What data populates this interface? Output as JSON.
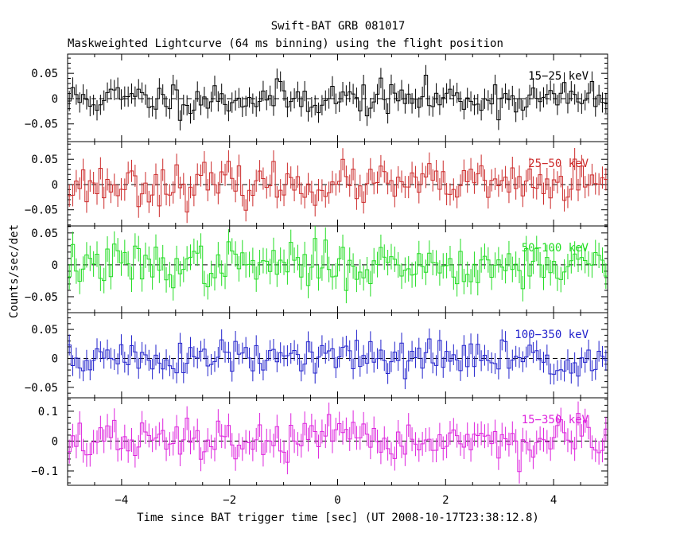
{
  "chart_data": {
    "type": "line",
    "style": "step-with-error-bars",
    "title": "Swift-BAT GRB 081017",
    "subtitle": "Maskweighted Lightcurve (64 ms binning) using the flight position",
    "xlabel": "Time since BAT trigger time [sec] (UT 2008-10-17T23:38:12.8)",
    "ylabel": "Counts/sec/det",
    "xlim": [
      -5,
      5
    ],
    "bin_width_sec": 0.064,
    "x_ticks": [
      -4,
      -2,
      0,
      2,
      4
    ],
    "x_tick_labels": [
      "−4",
      "−2",
      "0",
      "2",
      "4"
    ],
    "panels": [
      {
        "name": "15−25 keV",
        "color": "#000000",
        "ylim": [
          -0.085,
          0.088
        ],
        "y_ticks": [
          -0.05,
          0,
          0.05
        ],
        "y_tick_labels": [
          "−0.05",
          "0",
          "0.05"
        ],
        "noise_amplitude": 0.017,
        "error_bar": 0.02,
        "seed": 11
      },
      {
        "name": "25−50 keV",
        "color": "#cc2a2a",
        "ylim": [
          -0.082,
          0.085
        ],
        "y_ticks": [
          -0.05,
          0,
          0.05
        ],
        "y_tick_labels": [
          "−0.05",
          "0",
          "0.05"
        ],
        "noise_amplitude": 0.02,
        "error_bar": 0.022,
        "seed": 23
      },
      {
        "name": "50−100 keV",
        "color": "#22dd22",
        "ylim": [
          -0.075,
          0.061
        ],
        "y_ticks": [
          -0.05,
          0,
          0.05
        ],
        "y_tick_labels": [
          "−0.05",
          "0",
          "0.05"
        ],
        "noise_amplitude": 0.017,
        "error_bar": 0.02,
        "seed": 37
      },
      {
        "name": "100−350 keV",
        "color": "#2222cc",
        "ylim": [
          -0.068,
          0.079
        ],
        "y_ticks": [
          -0.05,
          0,
          0.05
        ],
        "y_tick_labels": [
          "−0.05",
          "0",
          "0.05"
        ],
        "noise_amplitude": 0.017,
        "error_bar": 0.018,
        "seed": 51
      },
      {
        "name": "15−350 keV",
        "color": "#dd22dd",
        "ylim": [
          -0.148,
          0.145
        ],
        "y_ticks": [
          -0.1,
          0,
          0.1
        ],
        "y_tick_labels": [
          "−0.1",
          "0",
          "0.1"
        ],
        "noise_amplitude": 0.035,
        "error_bar": 0.04,
        "seed": 67
      }
    ]
  }
}
